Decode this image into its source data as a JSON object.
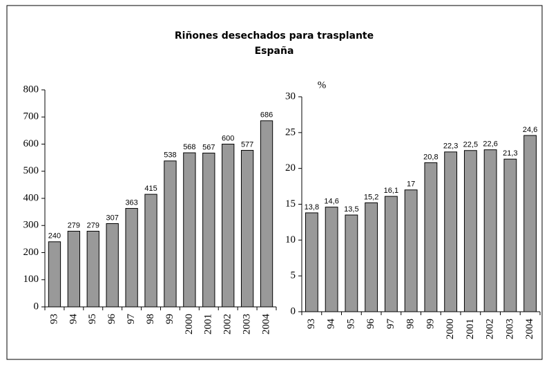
{
  "chart_data": [
    {
      "type": "bar",
      "title": "Riñones desechados para trasplante",
      "subtitle": "España",
      "categories": [
        "93",
        "94",
        "95",
        "96",
        "97",
        "98",
        "99",
        "2000",
        "2001",
        "2002",
        "2003",
        "2004"
      ],
      "values": [
        240,
        279,
        279,
        307,
        363,
        415,
        538,
        568,
        567,
        600,
        577,
        686
      ],
      "color": "#999999",
      "ylim": [
        0,
        800
      ],
      "yticks": [
        0,
        100,
        200,
        300,
        400,
        500,
        600,
        700,
        800
      ]
    },
    {
      "type": "bar",
      "y_label": "%",
      "categories": [
        "93",
        "94",
        "95",
        "96",
        "97",
        "98",
        "99",
        "2000",
        "2001",
        "2002",
        "2003",
        "2004"
      ],
      "values": [
        13.8,
        14.6,
        13.5,
        15.2,
        16.1,
        17,
        20.8,
        22.3,
        22.5,
        22.6,
        21.3,
        24.6
      ],
      "value_labels": [
        "13,8",
        "14,6",
        "13,5",
        "15,2",
        "16,1",
        "17",
        "20,8",
        "22,3",
        "22,5",
        "22,6",
        "21,3",
        "24,6"
      ],
      "color": "#999999",
      "ylim": [
        0,
        30
      ],
      "yticks": [
        0,
        5,
        10,
        15,
        20,
        25,
        30
      ]
    }
  ]
}
